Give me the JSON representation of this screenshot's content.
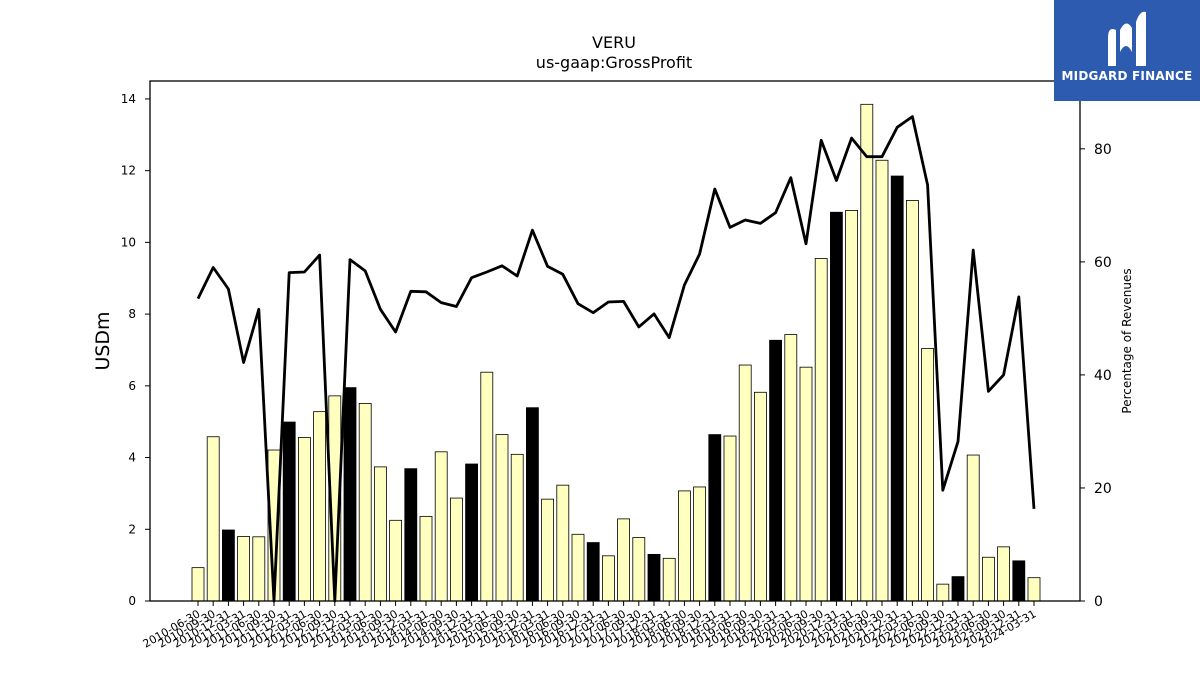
{
  "chart_data": {
    "type": "bar+line",
    "title": "VERU",
    "subtitle": "us-gaap:GrossProfit",
    "ylabel": "USDm",
    "y2label": "Percentage of Revenues",
    "ylim": [
      0,
      14.5
    ],
    "y2lim": [
      0,
      92
    ],
    "yticks": [
      0,
      2,
      4,
      6,
      8,
      10,
      12,
      14
    ],
    "y2ticks": [
      0,
      20,
      40,
      60,
      80
    ],
    "grid": false,
    "categories": [
      "2010-06-30",
      "2010-09-30",
      "2010-12-31",
      "2011-03-31",
      "2011-06-30",
      "2011-09-30",
      "2011-12-31",
      "2012-03-31",
      "2012-06-30",
      "2012-09-30",
      "2012-12-31",
      "2013-03-31",
      "2013-06-30",
      "2013-09-30",
      "2013-12-31",
      "2014-03-31",
      "2014-06-30",
      "2014-09-30",
      "2014-12-31",
      "2015-03-31",
      "2015-06-30",
      "2015-09-30",
      "2015-12-31",
      "2016-03-31",
      "2016-06-30",
      "2016-09-30",
      "2016-12-31",
      "2017-03-31",
      "2017-06-30",
      "2017-09-30",
      "2017-12-31",
      "2018-03-31",
      "2018-06-30",
      "2018-09-30",
      "2018-12-31",
      "2019-03-31",
      "2019-06-30",
      "2019-09-30",
      "2019-12-31",
      "2020-03-31",
      "2020-06-30",
      "2020-09-30",
      "2020-12-31",
      "2021-03-31",
      "2021-06-30",
      "2021-09-30",
      "2021-12-31",
      "2022-03-31",
      "2022-06-30",
      "2022-09-30",
      "2022-12-31",
      "2023-03-31",
      "2023-06-30",
      "2023-09-30",
      "2023-12-31",
      "2024-03-31"
    ],
    "series": [
      {
        "type": "bar",
        "values": [
          0.93,
          4.58,
          1.98,
          1.8,
          1.79,
          4.21,
          4.99,
          4.56,
          5.28,
          5.72,
          5.95,
          5.51,
          3.74,
          2.25,
          3.69,
          2.36,
          4.16,
          2.87,
          3.82,
          6.38,
          4.64,
          4.09,
          5.39,
          2.84,
          3.23,
          1.86,
          1.63,
          1.26,
          2.29,
          1.77,
          1.3,
          1.19,
          3.07,
          3.18,
          4.64,
          4.6,
          6.58,
          5.82,
          7.27,
          7.43,
          6.52,
          9.55,
          10.84,
          10.89,
          13.85,
          12.29,
          11.85,
          11.17,
          7.04,
          0.47,
          0.68,
          4.07,
          1.22,
          1.51,
          1.12,
          0.65
        ],
        "fill_flags": [
          0,
          0,
          1,
          0,
          0,
          0,
          1,
          0,
          0,
          0,
          1,
          0,
          0,
          0,
          1,
          0,
          0,
          0,
          1,
          0,
          0,
          0,
          1,
          0,
          0,
          0,
          1,
          0,
          0,
          0,
          1,
          0,
          0,
          0,
          1,
          0,
          0,
          0,
          1,
          0,
          0,
          0,
          1,
          0,
          0,
          0,
          1,
          0,
          0,
          0,
          1,
          0,
          0,
          0,
          1,
          0
        ],
        "colors": {
          "quarter": "#ffffc0",
          "year_end": "#000000",
          "edge": "#000000"
        }
      },
      {
        "type": "line",
        "axis": "right",
        "values": [
          53.5,
          59,
          55.2,
          42.2,
          51.6,
          0,
          58.1,
          58.2,
          61.2,
          0,
          60.4,
          58.4,
          51.6,
          47.6,
          54.8,
          54.7,
          52.8,
          52.1,
          57.2,
          58.2,
          59.3,
          57.5,
          65.6,
          59.2,
          57.8,
          52.6,
          51,
          52.9,
          53,
          48.5,
          50.8,
          46.6,
          55.9,
          61.4,
          72.9,
          66.1,
          67.4,
          66.8,
          68.7,
          74.9,
          63.2,
          81.5,
          74.4,
          81.9,
          78.6,
          78.6,
          83.8,
          85.7,
          73.6,
          19.6,
          28.2,
          62.1,
          37.1,
          40,
          53.8,
          16.3
        ],
        "color": "#000000"
      }
    ]
  },
  "logo": {
    "text": "MIDGARD FINANCE",
    "bg_color": "#2d5bb0",
    "icon": "midgard-m-icon"
  }
}
